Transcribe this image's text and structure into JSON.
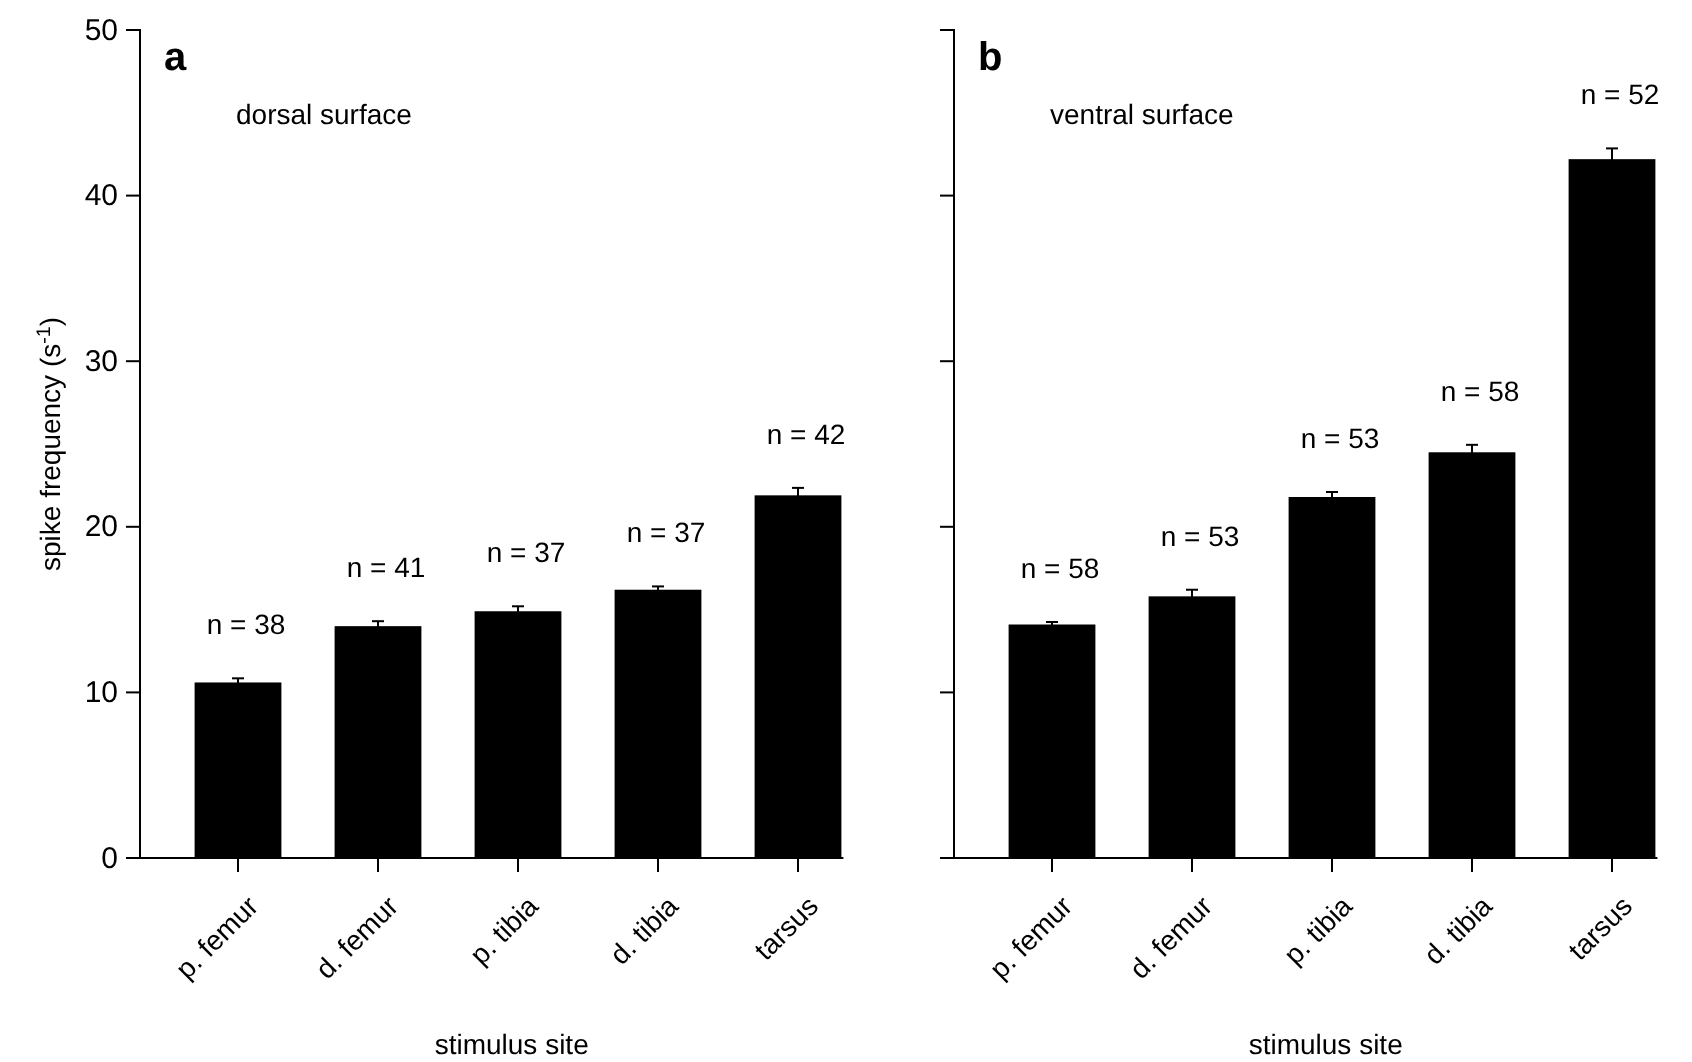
{
  "chart_data": [
    {
      "type": "bar",
      "title": "a",
      "subtitle": "dorsal surface",
      "xlabel": "stimulus site",
      "ylabel": "spike frequency (s$^{-1}$)",
      "categories": [
        "p. femur",
        "d. femur",
        "p. tibia",
        "d. tibia",
        "tarsus"
      ],
      "values": [
        10.6,
        14.0,
        14.9,
        16.2,
        21.9
      ],
      "color": "#000000",
      "errors": [
        0.25,
        0.3,
        0.3,
        0.2,
        0.45
      ],
      "ylim": [
        0,
        50
      ],
      "yticks": [
        0,
        10,
        20,
        30,
        40,
        50
      ],
      "grid": false,
      "annotations": [
        {
          "text": "n = 38",
          "x": "p. femur",
          "y": 10.6
        },
        {
          "text": "n = 41",
          "x": "d. femur",
          "y": 14.0
        },
        {
          "text": "n = 37",
          "x": "p. tibia",
          "y": 14.9
        },
        {
          "text": "n = 37",
          "x": "d. tibia",
          "y": 16.2
        },
        {
          "text": "n = 42",
          "x": "tarsus",
          "y": 21.9
        }
      ]
    },
    {
      "type": "bar",
      "title": "b",
      "subtitle": "ventral surface",
      "xlabel": "stimulus site",
      "categories": [
        "p. femur",
        "d. femur",
        "p. tibia",
        "d. tibia",
        "tarsus"
      ],
      "values": [
        14.1,
        15.8,
        21.8,
        24.5,
        42.2
      ],
      "color": "#000000",
      "errors": [
        0.15,
        0.4,
        0.3,
        0.45,
        0.65
      ],
      "ylim": [
        0,
        50
      ],
      "yticks": [
        0,
        10,
        20,
        30,
        40,
        50
      ],
      "tick_labels": "x",
      "grid": false,
      "annotations": [
        {
          "text": "n = 58",
          "x": "p. femur",
          "y": 14.1
        },
        {
          "text": "n = 53",
          "x": "d. femur",
          "y": 15.8
        },
        {
          "text": "n = 53",
          "x": "p. tibia",
          "y": 21.8
        },
        {
          "text": "n = 58",
          "x": "d. tibia",
          "y": 24.5
        },
        {
          "text": "n = 52",
          "x": "tarsus",
          "y": 42.2
        }
      ]
    }
  ]
}
